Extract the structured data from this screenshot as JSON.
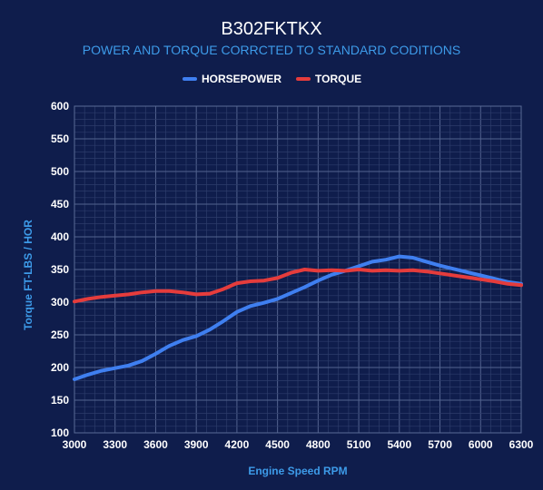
{
  "chart_data": {
    "type": "line",
    "title": "B302FKTKX",
    "subtitle": "POWER AND TORQUE CORRCTED TO STANDARD CODITIONS",
    "xlabel": "Engine Speed RPM",
    "ylabel": "Torque FT-LBS / HOR",
    "xlim": [
      3000,
      6300
    ],
    "ylim": [
      100,
      600
    ],
    "x_ticks": [
      3000,
      3300,
      3600,
      3900,
      4200,
      4500,
      4800,
      5100,
      5400,
      5700,
      6000,
      6300
    ],
    "y_ticks": [
      100,
      150,
      200,
      250,
      300,
      350,
      400,
      450,
      500,
      550,
      600
    ],
    "grid": true,
    "legend_position": "top-center",
    "x": [
      3000,
      3100,
      3200,
      3300,
      3400,
      3500,
      3600,
      3700,
      3800,
      3900,
      4000,
      4100,
      4200,
      4300,
      4400,
      4500,
      4600,
      4700,
      4800,
      4900,
      5000,
      5100,
      5200,
      5300,
      5400,
      5500,
      5600,
      5700,
      5800,
      5900,
      6000,
      6100,
      6200,
      6300
    ],
    "series": [
      {
        "name": "HORSEPOWER",
        "color": "#3f7ff0",
        "values": [
          182,
          189,
          195,
          199,
          203,
          210,
          221,
          233,
          242,
          248,
          258,
          271,
          285,
          294,
          299,
          305,
          314,
          323,
          333,
          342,
          348,
          355,
          362,
          365,
          370,
          368,
          362,
          356,
          351,
          346,
          341,
          336,
          331,
          328
        ]
      },
      {
        "name": "TORQUE",
        "color": "#e53c3c",
        "values": [
          301,
          305,
          308,
          310,
          312,
          315,
          317,
          317,
          315,
          312,
          313,
          320,
          329,
          332,
          333,
          337,
          345,
          350,
          348,
          349,
          348,
          350,
          348,
          349,
          348,
          349,
          347,
          344,
          341,
          338,
          335,
          332,
          328,
          326
        ]
      }
    ]
  }
}
